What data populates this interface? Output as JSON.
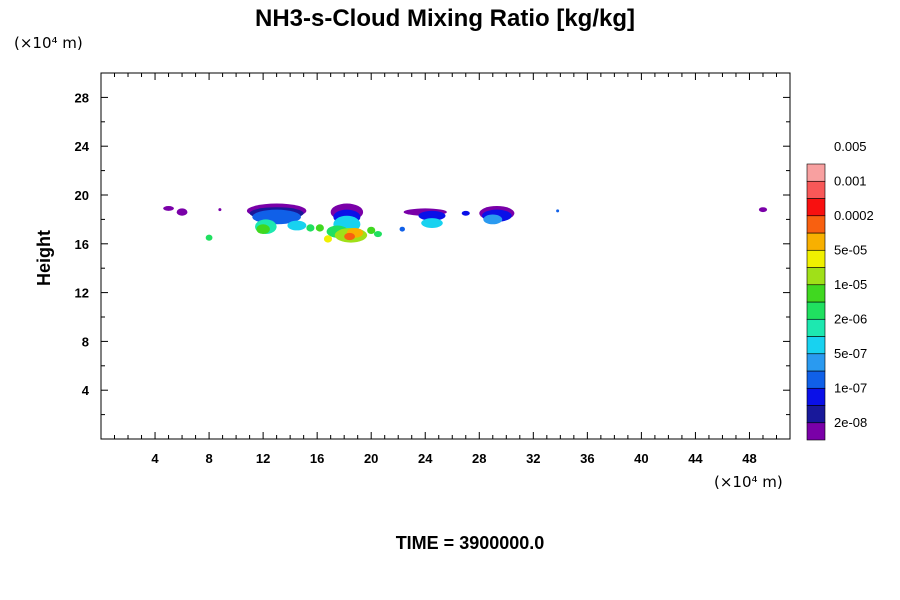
{
  "chart_data": {
    "type": "heatmap",
    "title": "NH3-s-Cloud Mixing Ratio [kg/kg]",
    "ylabel": "Height",
    "y_scale_label": "(×10⁴ m)",
    "x_scale_label": "(×10⁴ m)",
    "xlim": [
      0,
      51
    ],
    "ylim": [
      0,
      30
    ],
    "x_ticks": [
      4,
      8,
      12,
      16,
      20,
      24,
      28,
      32,
      36,
      40,
      44,
      48
    ],
    "y_ticks": [
      4,
      8,
      12,
      16,
      20,
      24,
      28
    ],
    "colorbar": {
      "colors": [
        "#7a00a8",
        "#18189a",
        "#0a10e8",
        "#1060e8",
        "#2a9af0",
        "#18d2f0",
        "#1de8b0",
        "#20e060",
        "#40d820",
        "#a0e018",
        "#f0f000",
        "#f8b000",
        "#f86010",
        "#f81010",
        "#f85858",
        "#f8a0a0"
      ],
      "labels": [
        "2e-08",
        "1e-07",
        "5e-07",
        "2e-06",
        "1e-05",
        "5e-05",
        "0.0002",
        "0.001",
        "0.005"
      ]
    },
    "regions": [
      {
        "x": 5.0,
        "y": 18.9,
        "rx": 0.4,
        "ry": 0.2,
        "level": 0
      },
      {
        "x": 6.0,
        "y": 18.6,
        "rx": 0.4,
        "ry": 0.3,
        "level": 0
      },
      {
        "x": 8.0,
        "y": 16.5,
        "rx": 0.25,
        "ry": 0.25,
        "level": 7
      },
      {
        "x": 8.8,
        "y": 18.8,
        "rx": 0.1,
        "ry": 0.1,
        "level": 0
      },
      {
        "x": 13.0,
        "y": 18.7,
        "rx": 2.2,
        "ry": 0.6,
        "level": 0
      },
      {
        "x": 13.0,
        "y": 18.5,
        "rx": 2.0,
        "ry": 0.5,
        "level": 1
      },
      {
        "x": 13.0,
        "y": 18.2,
        "rx": 1.8,
        "ry": 0.6,
        "level": 3
      },
      {
        "x": 12.2,
        "y": 17.4,
        "rx": 0.8,
        "ry": 0.6,
        "level": 6
      },
      {
        "x": 12.0,
        "y": 17.2,
        "rx": 0.5,
        "ry": 0.4,
        "level": 8
      },
      {
        "x": 14.5,
        "y": 17.5,
        "rx": 0.7,
        "ry": 0.4,
        "level": 5
      },
      {
        "x": 15.5,
        "y": 17.3,
        "rx": 0.3,
        "ry": 0.3,
        "level": 7
      },
      {
        "x": 18.2,
        "y": 18.6,
        "rx": 1.2,
        "ry": 0.7,
        "level": 0
      },
      {
        "x": 18.2,
        "y": 18.2,
        "rx": 1.0,
        "ry": 0.6,
        "level": 2
      },
      {
        "x": 18.2,
        "y": 17.6,
        "rx": 1.0,
        "ry": 0.7,
        "level": 5
      },
      {
        "x": 17.5,
        "y": 17.0,
        "rx": 0.8,
        "ry": 0.5,
        "level": 7
      },
      {
        "x": 18.5,
        "y": 16.7,
        "rx": 1.2,
        "ry": 0.6,
        "level": 9
      },
      {
        "x": 18.8,
        "y": 16.9,
        "rx": 0.6,
        "ry": 0.4,
        "level": 11
      },
      {
        "x": 18.4,
        "y": 16.6,
        "rx": 0.4,
        "ry": 0.3,
        "level": 12
      },
      {
        "x": 16.8,
        "y": 16.4,
        "rx": 0.3,
        "ry": 0.3,
        "level": 10
      },
      {
        "x": 16.2,
        "y": 17.3,
        "rx": 0.3,
        "ry": 0.3,
        "level": 8
      },
      {
        "x": 20.0,
        "y": 17.1,
        "rx": 0.3,
        "ry": 0.3,
        "level": 8
      },
      {
        "x": 20.5,
        "y": 16.8,
        "rx": 0.3,
        "ry": 0.25,
        "level": 7
      },
      {
        "x": 24.0,
        "y": 18.6,
        "rx": 1.6,
        "ry": 0.3,
        "level": 0
      },
      {
        "x": 24.5,
        "y": 18.3,
        "rx": 1.0,
        "ry": 0.4,
        "level": 2
      },
      {
        "x": 24.5,
        "y": 17.7,
        "rx": 0.8,
        "ry": 0.4,
        "level": 5
      },
      {
        "x": 22.3,
        "y": 17.2,
        "rx": 0.2,
        "ry": 0.2,
        "level": 3
      },
      {
        "x": 27.0,
        "y": 18.5,
        "rx": 0.3,
        "ry": 0.2,
        "level": 2
      },
      {
        "x": 29.3,
        "y": 18.5,
        "rx": 1.3,
        "ry": 0.6,
        "level": 0
      },
      {
        "x": 29.3,
        "y": 18.3,
        "rx": 1.1,
        "ry": 0.5,
        "level": 2
      },
      {
        "x": 29.0,
        "y": 18.0,
        "rx": 0.7,
        "ry": 0.4,
        "level": 4
      },
      {
        "x": 33.8,
        "y": 18.7,
        "rx": 0.1,
        "ry": 0.1,
        "level": 3
      },
      {
        "x": 49.0,
        "y": 18.8,
        "rx": 0.3,
        "ry": 0.2,
        "level": 0
      }
    ]
  },
  "footer": {
    "time_label": "TIME = 3900000.0"
  }
}
